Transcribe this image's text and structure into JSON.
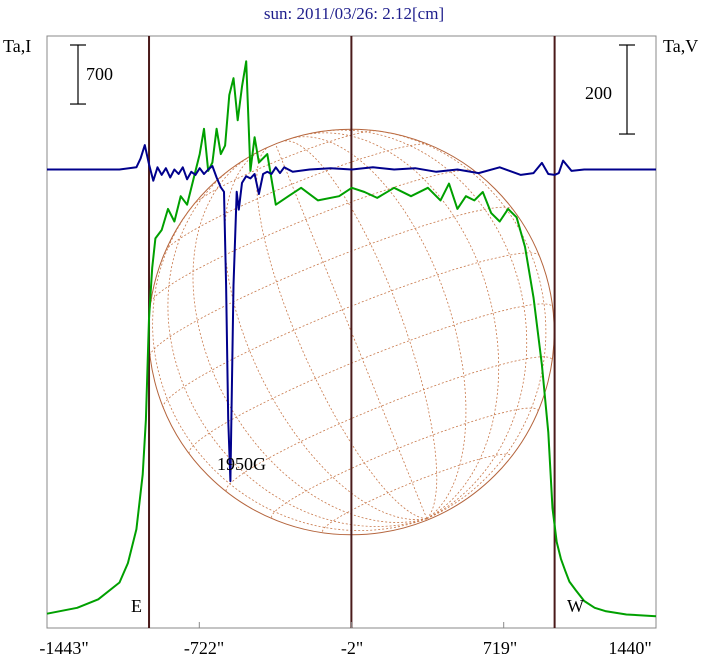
{
  "title": "sun: 2011/03/26: 2.12[cm]",
  "left_axis_label": "Ta,I",
  "right_axis_label": "Ta,V",
  "scale_bar_left_label": "700",
  "scale_bar_right_label": "200",
  "east_label": "E",
  "west_label": "W",
  "annotation": "1950G",
  "chart_data": {
    "type": "line",
    "x_unit": "arcsec",
    "xlim": [
      -1443,
      1440
    ],
    "x_ticks": [
      -1443,
      -722,
      -2,
      719,
      1440
    ],
    "x_tick_labels": [
      "-1443\"",
      "-722\"",
      "-2\"",
      "719\"",
      "1440\""
    ],
    "limb_markers_x": [
      -960,
      -2,
      960
    ],
    "series": [
      {
        "id": "intensity",
        "color": "#00a000",
        "x": [
          -1443,
          -1300,
          -1200,
          -1100,
          -1060,
          -1020,
          -990,
          -975,
          -960,
          -945,
          -930,
          -900,
          -870,
          -840,
          -810,
          -780,
          -750,
          -720,
          -700,
          -680,
          -660,
          -640,
          -620,
          -600,
          -580,
          -560,
          -540,
          -520,
          -500,
          -480,
          -460,
          -440,
          -400,
          -360,
          -300,
          -240,
          -160,
          -60,
          0,
          60,
          120,
          200,
          280,
          360,
          420,
          460,
          500,
          540,
          580,
          620,
          660,
          700,
          740,
          780,
          820,
          860,
          900,
          930,
          950,
          970,
          990,
          1010,
          1030,
          1060,
          1100,
          1150,
          1200,
          1300,
          1440
        ],
        "y": [
          50,
          120,
          220,
          420,
          650,
          1050,
          1700,
          2350,
          3550,
          4150,
          4500,
          4600,
          4850,
          4700,
          5000,
          4900,
          5200,
          5500,
          5800,
          5300,
          5400,
          5800,
          5500,
          5600,
          6200,
          6400,
          5900,
          6300,
          6600,
          5300,
          5700,
          5400,
          5500,
          4900,
          5000,
          5100,
          4950,
          5000,
          5100,
          5050,
          4980,
          5100,
          5000,
          5100,
          4950,
          5150,
          4850,
          5000,
          4950,
          5050,
          4800,
          4700,
          4850,
          4750,
          4400,
          3800,
          3000,
          2200,
          1300,
          900,
          700,
          560,
          430,
          330,
          200,
          120,
          80,
          40,
          20
        ],
        "ylim": [
          -120,
          6900
        ]
      },
      {
        "id": "polarization",
        "color": "#00008c",
        "x": [
          -1443,
          -1100,
          -1020,
          -1000,
          -980,
          -960,
          -940,
          -920,
          -900,
          -880,
          -860,
          -840,
          -820,
          -800,
          -780,
          -760,
          -740,
          -720,
          -700,
          -680,
          -660,
          -640,
          -620,
          -605,
          -595,
          -585,
          -575,
          -560,
          -545,
          -535,
          -520,
          -500,
          -480,
          -460,
          -440,
          -420,
          -400,
          -380,
          -360,
          -340,
          -320,
          -300,
          -280,
          -200,
          -100,
          0,
          100,
          200,
          300,
          400,
          500,
          600,
          700,
          800,
          860,
          900,
          930,
          960,
          980,
          1000,
          1040,
          1100,
          1200,
          1300,
          1440
        ],
        "y": [
          0,
          0,
          5,
          25,
          55,
          12,
          -25,
          5,
          -12,
          3,
          -18,
          0,
          -10,
          5,
          -22,
          -5,
          -12,
          3,
          -10,
          0,
          8,
          -18,
          -40,
          -50,
          -260,
          -560,
          -700,
          -260,
          -50,
          -90,
          -30,
          -15,
          -20,
          -10,
          -55,
          -10,
          -5,
          -10,
          5,
          -8,
          5,
          0,
          -5,
          0,
          3,
          0,
          5,
          0,
          3,
          -5,
          0,
          -8,
          5,
          -12,
          -8,
          15,
          -10,
          -12,
          -8,
          20,
          -3,
          0,
          0,
          0,
          0
        ],
        "ylim": [
          -1030,
          300
        ]
      }
    ],
    "annotations": [
      {
        "text": "1950G",
        "x": -600,
        "series": "polarization"
      }
    ],
    "scale_bars": [
      {
        "side": "left",
        "value": 700,
        "series": "intensity"
      },
      {
        "side": "right",
        "value": 200,
        "series": "polarization"
      }
    ],
    "grid": false
  }
}
